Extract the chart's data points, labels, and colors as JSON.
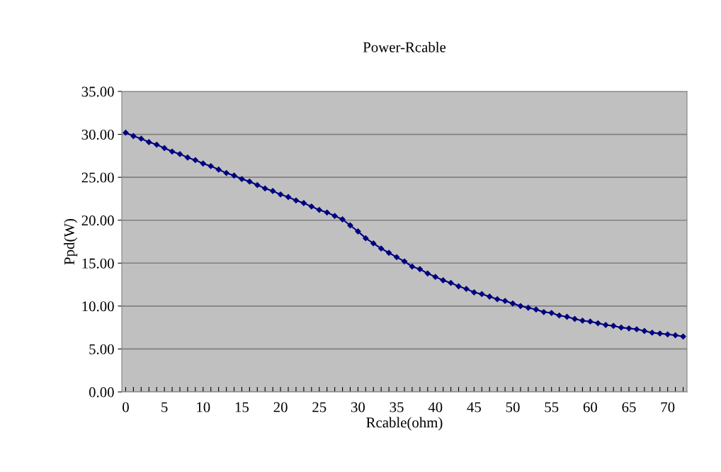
{
  "chart_data": {
    "type": "line",
    "title": "Power-Rcable",
    "xlabel": "Rcable(ohm)",
    "ylabel": "Ppd(W)",
    "x": [
      0,
      1,
      2,
      3,
      4,
      5,
      6,
      7,
      8,
      9,
      10,
      11,
      12,
      13,
      14,
      15,
      16,
      17,
      18,
      19,
      20,
      21,
      22,
      23,
      24,
      25,
      26,
      27,
      28,
      29,
      30,
      31,
      32,
      33,
      34,
      35,
      36,
      37,
      38,
      39,
      40,
      41,
      42,
      43,
      44,
      45,
      46,
      47,
      48,
      49,
      50,
      51,
      52,
      53,
      54,
      55,
      56,
      57,
      58,
      59,
      60,
      61,
      62,
      63,
      64,
      65,
      66,
      67,
      68,
      69,
      70,
      71,
      72
    ],
    "series": [
      {
        "color": "#000080",
        "values": [
          30.2,
          29.8,
          29.5,
          29.1,
          28.8,
          28.4,
          28.0,
          27.7,
          27.3,
          27.0,
          26.6,
          26.3,
          25.9,
          25.5,
          25.2,
          24.8,
          24.5,
          24.1,
          23.7,
          23.4,
          23.0,
          22.7,
          22.3,
          22.0,
          21.6,
          21.2,
          20.9,
          20.5,
          20.1,
          19.4,
          18.7,
          17.9,
          17.3,
          16.7,
          16.2,
          15.7,
          15.2,
          14.6,
          14.3,
          13.8,
          13.4,
          13.0,
          12.7,
          12.3,
          12.0,
          11.6,
          11.4,
          11.1,
          10.8,
          10.6,
          10.3,
          10.0,
          9.8,
          9.6,
          9.3,
          9.2,
          8.9,
          8.75,
          8.5,
          8.3,
          8.2,
          8.0,
          7.8,
          7.7,
          7.5,
          7.4,
          7.3,
          7.1,
          6.9,
          6.8,
          6.7,
          6.6,
          6.45
        ]
      }
    ],
    "xlim": [
      -0.5,
      72.5
    ],
    "xticks": [
      0,
      {
        "value": 1,
        "label": null
      },
      {
        "value": 2,
        "label": null
      },
      {
        "value": 3,
        "label": null
      },
      {
        "value": 4,
        "label": null
      },
      5,
      {
        "value": 6,
        "label": null
      },
      {
        "value": 7,
        "label": null
      },
      {
        "value": 8,
        "label": null
      },
      {
        "value": 9,
        "label": null
      },
      10,
      {
        "value": 11,
        "label": null
      },
      {
        "value": 12,
        "label": null
      },
      {
        "value": 13,
        "label": null
      },
      {
        "value": 14,
        "label": null
      },
      15,
      {
        "value": 16,
        "label": null
      },
      {
        "value": 17,
        "label": null
      },
      {
        "value": 18,
        "label": null
      },
      {
        "value": 19,
        "label": null
      },
      20,
      {
        "value": 21,
        "label": null
      },
      {
        "value": 22,
        "label": null
      },
      {
        "value": 23,
        "label": null
      },
      {
        "value": 24,
        "label": null
      },
      25,
      {
        "value": 26,
        "label": null
      },
      {
        "value": 27,
        "label": null
      },
      {
        "value": 28,
        "label": null
      },
      {
        "value": 29,
        "label": null
      },
      30,
      {
        "value": 31,
        "label": null
      },
      {
        "value": 32,
        "label": null
      },
      {
        "value": 33,
        "label": null
      },
      {
        "value": 34,
        "label": null
      },
      35,
      {
        "value": 36,
        "label": null
      },
      {
        "value": 37,
        "label": null
      },
      {
        "value": 38,
        "label": null
      },
      {
        "value": 39,
        "label": null
      },
      40,
      {
        "value": 41,
        "label": null
      },
      {
        "value": 42,
        "label": null
      },
      {
        "value": 43,
        "label": null
      },
      {
        "value": 44,
        "label": null
      },
      45,
      {
        "value": 46,
        "label": null
      },
      {
        "value": 47,
        "label": null
      },
      {
        "value": 48,
        "label": null
      },
      {
        "value": 49,
        "label": null
      },
      50,
      {
        "value": 51,
        "label": null
      },
      {
        "value": 52,
        "label": null
      },
      {
        "value": 53,
        "label": null
      },
      {
        "value": 54,
        "label": null
      },
      55,
      {
        "value": 56,
        "label": null
      },
      {
        "value": 57,
        "label": null
      },
      {
        "value": 58,
        "label": null
      },
      {
        "value": 59,
        "label": null
      },
      60,
      {
        "value": 61,
        "label": null
      },
      {
        "value": 62,
        "label": null
      },
      {
        "value": 63,
        "label": null
      },
      {
        "value": 64,
        "label": null
      },
      65,
      {
        "value": 66,
        "label": null
      },
      {
        "value": 67,
        "label": null
      },
      {
        "value": 68,
        "label": null
      },
      {
        "value": 69,
        "label": null
      },
      70,
      {
        "value": 71,
        "label": null
      },
      {
        "value": 72,
        "label": null
      }
    ],
    "ylim": [
      0,
      35
    ],
    "yticks": [
      {
        "value": 0,
        "label": "0.00"
      },
      {
        "value": 5,
        "label": "5.00"
      },
      {
        "value": 10,
        "label": "10.00"
      },
      {
        "value": 15,
        "label": "15.00"
      },
      {
        "value": 20,
        "label": "20.00"
      },
      {
        "value": 25,
        "label": "25.00"
      },
      {
        "value": 30,
        "label": "30.00"
      },
      {
        "value": 35,
        "label": "35.00"
      }
    ],
    "grid": "y",
    "marker": "diamond",
    "line_style": "solid",
    "legend": false
  }
}
